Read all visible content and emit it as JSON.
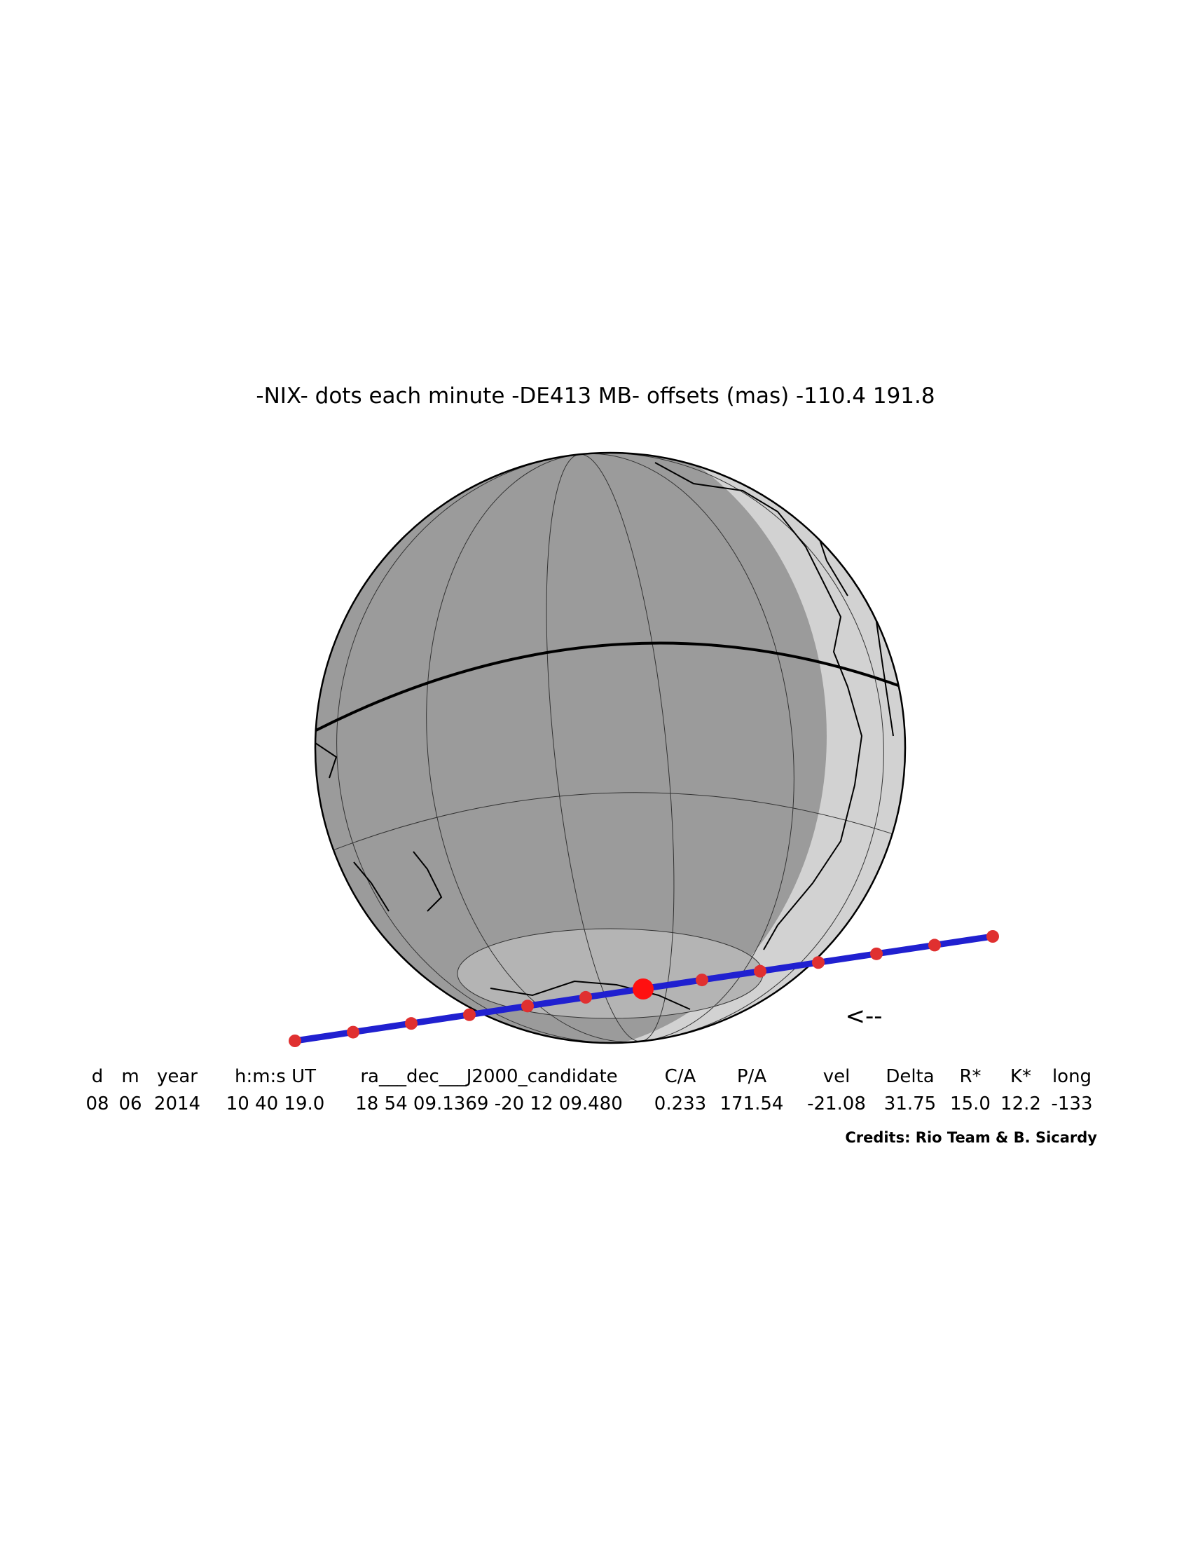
{
  "title": "-NIX- dots each minute -DE413 MB- offsets (mas) -110.4   191.8",
  "direction_arrow": "<--",
  "table": {
    "header": [
      "d",
      "m",
      "year",
      "h:m:s UT",
      "ra___dec___J2000_candidate",
      "C/A",
      "P/A",
      "vel",
      "Delta",
      "R*",
      "K*",
      "long"
    ],
    "values": [
      "08",
      "06",
      "2014",
      "10 40 19.0",
      "18 54 09.1369 -20 12 09.480",
      "0.233",
      "171.54",
      "-21.08",
      "31.75",
      "15.0",
      "12.2",
      "-133"
    ]
  },
  "credits": "Credits: Rio Team & B. Sicardy"
}
